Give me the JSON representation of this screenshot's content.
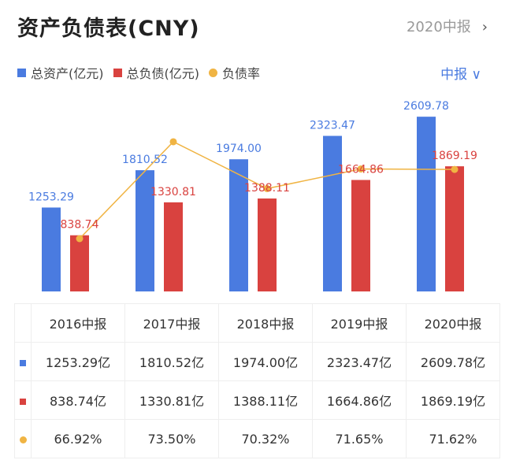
{
  "header": {
    "title": "资产负债表(CNY)",
    "period": "2020中报",
    "chevron": "›"
  },
  "selector": {
    "label": "中报",
    "chevron": "∨"
  },
  "colors": {
    "assets": "#4a7be0",
    "liabilities": "#d9423f",
    "ratio": "#f0b443"
  },
  "chart_data": {
    "type": "bar+line",
    "categories": [
      "2016中报",
      "2017中报",
      "2018中报",
      "2019中报",
      "2020中报"
    ],
    "series": [
      {
        "name": "总资产(亿元)",
        "type": "bar",
        "values": [
          1253.29,
          1810.52,
          1974.0,
          2323.47,
          2609.78
        ],
        "labels": [
          "1253.29",
          "1810.52",
          "1974.00",
          "2323.47",
          "2609.78"
        ]
      },
      {
        "name": "总负债(亿元)",
        "type": "bar",
        "values": [
          838.74,
          1330.81,
          1388.11,
          1664.86,
          1869.19
        ],
        "labels": [
          "838.74",
          "1330.81",
          "1388.11",
          "1664.86",
          "1869.19"
        ]
      },
      {
        "name": "负债率",
        "type": "line",
        "values": [
          66.92,
          73.5,
          70.32,
          71.65,
          71.62
        ]
      }
    ],
    "legend": "top-left",
    "grid": false
  },
  "table": {
    "headers": [
      "2016中报",
      "2017中报",
      "2018中报",
      "2019中报",
      "2020中报"
    ],
    "rows": [
      {
        "marker": "assets",
        "cells": [
          "1253.29亿",
          "1810.52亿",
          "1974.00亿",
          "2323.47亿",
          "2609.78亿"
        ]
      },
      {
        "marker": "liabilities",
        "cells": [
          "838.74亿",
          "1330.81亿",
          "1388.11亿",
          "1664.86亿",
          "1869.19亿"
        ]
      },
      {
        "marker": "ratio",
        "cells": [
          "66.92%",
          "73.50%",
          "70.32%",
          "71.65%",
          "71.62%"
        ]
      }
    ]
  }
}
